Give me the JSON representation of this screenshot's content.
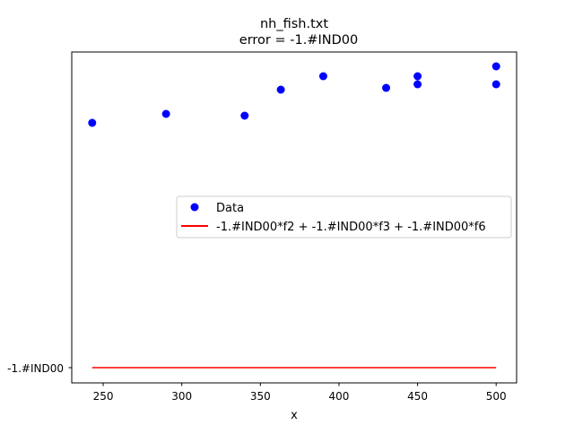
{
  "chart_data": {
    "type": "scatter",
    "title": "nh_fish.txt",
    "subtitle": "error  = -1.#IND00",
    "xlabel": "x",
    "ylabel": "",
    "xlim": [
      230,
      513
    ],
    "x_ticks": [
      250,
      300,
      350,
      400,
      450,
      500
    ],
    "y_tick_label": "-1.#IND00",
    "grid": false,
    "legend_position": "center-right",
    "series": [
      {
        "name": "Data",
        "kind": "points",
        "color": "#0000ff",
        "points": [
          {
            "x": 243,
            "y": 137
          },
          {
            "x": 290,
            "y": 127
          },
          {
            "x": 340,
            "y": 129
          },
          {
            "x": 363,
            "y": 100
          },
          {
            "x": 390,
            "y": 85
          },
          {
            "x": 430,
            "y": 98
          },
          {
            "x": 450,
            "y": 85
          },
          {
            "x": 450,
            "y": 94
          },
          {
            "x": 500,
            "y": 74
          },
          {
            "x": 500,
            "y": 94
          }
        ]
      },
      {
        "name": "-1.#IND00*f2 + -1.#IND00*f3 + -1.#IND00*f6",
        "kind": "line",
        "color": "#ff0000",
        "x_range": [
          243,
          500
        ]
      }
    ]
  }
}
